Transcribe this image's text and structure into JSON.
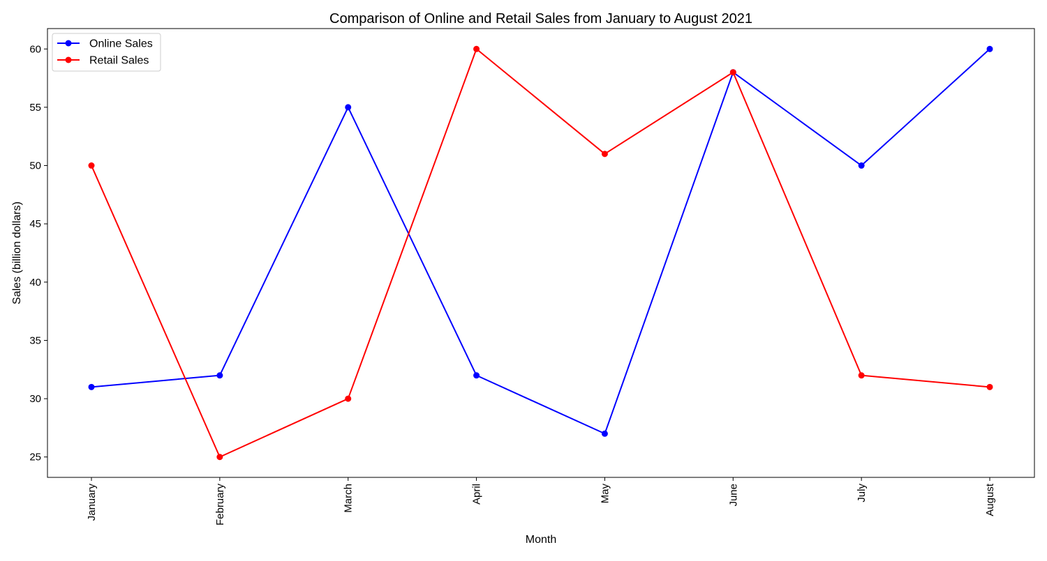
{
  "chart_data": {
    "type": "line",
    "title": "Comparison of Online and Retail Sales from January to August 2021",
    "xlabel": "Month",
    "ylabel": "Sales (billion dollars)",
    "categories": [
      "January",
      "February",
      "March",
      "April",
      "May",
      "June",
      "July",
      "August"
    ],
    "series": [
      {
        "name": "Online Sales",
        "color": "#0000ff",
        "values": [
          31,
          32,
          55,
          32,
          27,
          58,
          50,
          60
        ]
      },
      {
        "name": "Retail Sales",
        "color": "#ff0000",
        "values": [
          50,
          25,
          30,
          60,
          51,
          58,
          32,
          31
        ]
      }
    ],
    "ylim": [
      23.25,
      61.75
    ],
    "yticks": [
      25,
      30,
      35,
      40,
      45,
      50,
      55,
      60
    ],
    "grid": false,
    "legend_position": "top-left",
    "marker": "circle"
  }
}
